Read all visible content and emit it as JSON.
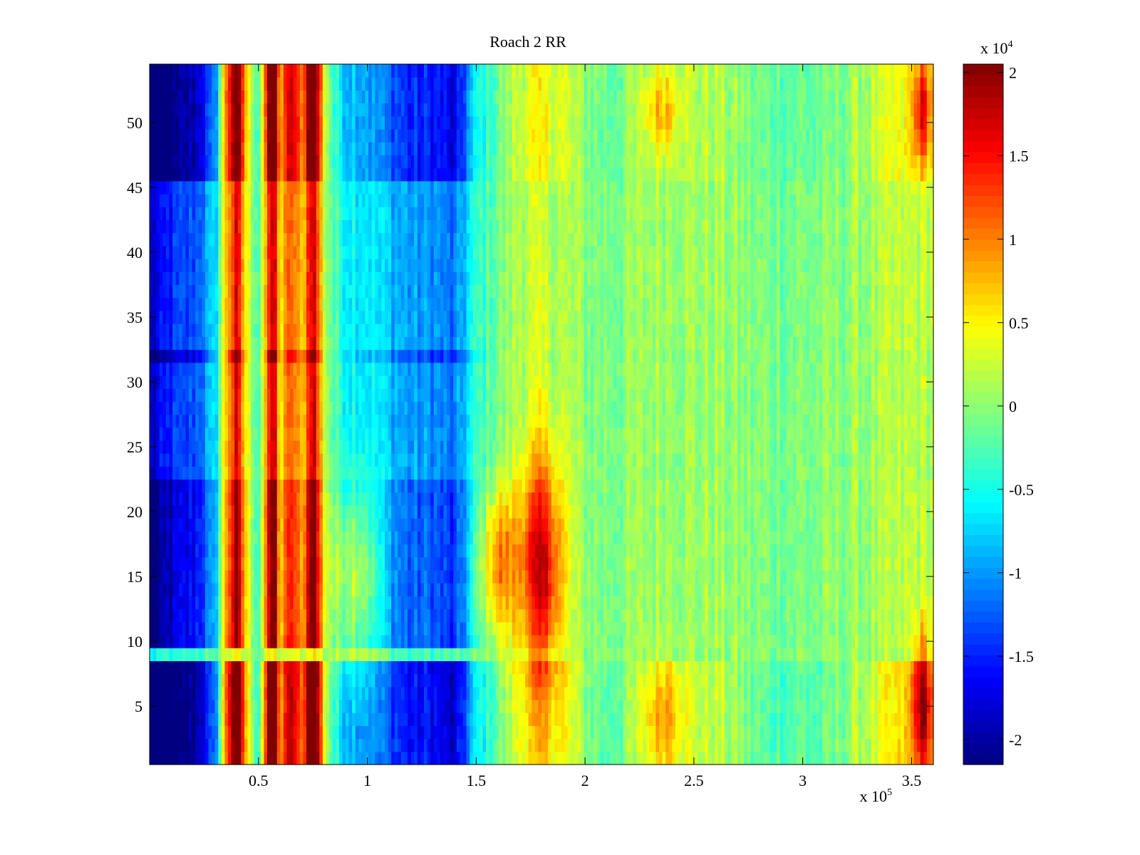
{
  "chart_data": {
    "type": "heatmap",
    "title": "Roach 2 RR",
    "xlabel": "",
    "ylabel": "",
    "x_exponent_label": {
      "base": "x 10",
      "exp": "5"
    },
    "xlim": [
      0,
      3.6
    ],
    "ylim": [
      0.5,
      54.5
    ],
    "x_ticks": [
      0.5,
      1,
      1.5,
      2,
      2.5,
      3,
      3.5
    ],
    "x_tick_labels": [
      "0.5",
      "1",
      "1.5",
      "2",
      "2.5",
      "3",
      "3.5"
    ],
    "y_ticks": [
      5,
      10,
      15,
      20,
      25,
      30,
      35,
      40,
      45,
      50
    ],
    "y_tick_labels": [
      "5",
      "10",
      "15",
      "20",
      "25",
      "30",
      "35",
      "40",
      "45",
      "50"
    ],
    "colorbar": {
      "colormap": "jet",
      "range": [
        -2.15,
        2.05
      ],
      "exponent_label": {
        "base": "x 10",
        "exp": "4"
      },
      "ticks": [
        -2,
        -1.5,
        -1,
        -0.5,
        0,
        0.5,
        1,
        1.5,
        2
      ],
      "tick_labels": [
        "-2",
        "-1.5",
        "-1",
        "-0.5",
        "0",
        "0.5",
        "1",
        "1.5",
        "2"
      ]
    },
    "rows": {
      "start": 1,
      "end": 54
    },
    "column_profile": {
      "x": [
        0.0,
        0.1,
        0.2,
        0.3,
        0.35,
        0.4,
        0.45,
        0.5,
        0.57,
        0.6,
        0.65,
        0.7,
        0.75,
        0.8,
        0.85,
        0.9,
        1.0,
        1.1,
        1.2,
        1.3,
        1.4,
        1.5,
        1.6,
        1.7,
        1.8,
        1.9,
        2.0,
        2.1,
        2.2,
        2.3,
        2.4,
        2.5,
        2.6,
        2.7,
        2.8,
        2.9,
        3.0,
        3.1,
        3.2,
        3.3,
        3.4,
        3.5,
        3.6
      ],
      "base": [
        -1.9,
        -1.5,
        -1.3,
        -0.8,
        0.7,
        1.6,
        0.3,
        -0.2,
        1.9,
        0.5,
        1.2,
        0.6,
        1.9,
        0.3,
        -0.3,
        -0.5,
        -0.6,
        -0.8,
        -1.0,
        -1.0,
        -1.2,
        -0.4,
        -0.1,
        0.2,
        0.3,
        0.2,
        0.0,
        -0.1,
        0.0,
        0.1,
        0.2,
        0.1,
        0.1,
        0.0,
        -0.1,
        -0.1,
        -0.1,
        -0.1,
        0.0,
        0.1,
        0.2,
        0.3,
        0.3
      ]
    },
    "row_modulation": [
      {
        "rows": [
          1,
          8
        ],
        "factor_left": 1.6,
        "factor_right": 2.2
      },
      {
        "rows": [
          9,
          9
        ],
        "factor_left": 0.3,
        "factor_right": 0.3
      },
      {
        "rows": [
          10,
          22
        ],
        "factor_left": 1.25,
        "factor_right": 0.6
      },
      {
        "rows": [
          23,
          31
        ],
        "factor_left": 1.0,
        "factor_right": 0.5
      },
      {
        "rows": [
          32,
          32
        ],
        "factor_left": 1.3,
        "factor_right": 0.5
      },
      {
        "rows": [
          33,
          45
        ],
        "factor_left": 1.0,
        "factor_right": 0.7
      },
      {
        "rows": [
          46,
          54
        ],
        "factor_left": 1.5,
        "factor_right": 1.5
      }
    ],
    "hotspots": [
      {
        "x": 1.8,
        "y": 16,
        "sx": 0.07,
        "sy": 6,
        "value": 1.5
      },
      {
        "x": 1.6,
        "y": 16,
        "sx": 0.06,
        "sy": 4,
        "value": 1.1
      },
      {
        "x": 0.95,
        "y": 15,
        "sx": 0.08,
        "sy": 5,
        "value": 0.9
      },
      {
        "x": 3.55,
        "y": 5,
        "sx": 0.03,
        "sy": 4,
        "value": 1.4
      },
      {
        "x": 3.55,
        "y": 51,
        "sx": 0.03,
        "sy": 3,
        "value": 1.1
      },
      {
        "x": 2.35,
        "y": 51,
        "sx": 0.06,
        "sy": 2,
        "value": 0.6
      },
      {
        "x": 2.35,
        "y": 4,
        "sx": 0.06,
        "sy": 3,
        "value": 0.6
      }
    ],
    "grid": false,
    "legend": "colorbar-right"
  }
}
